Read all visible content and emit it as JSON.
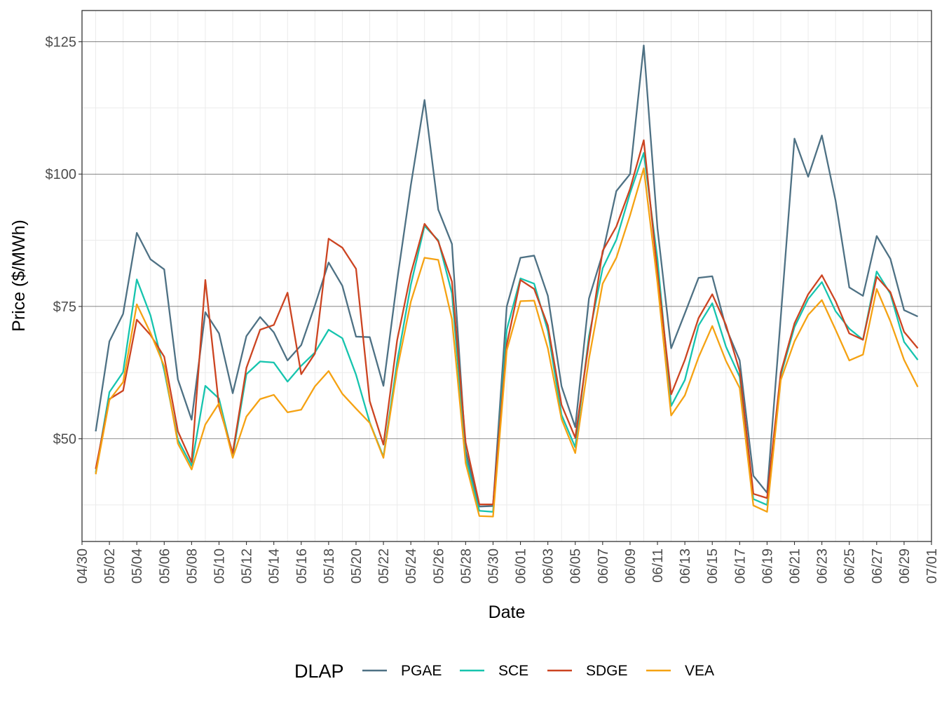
{
  "chart_data": {
    "type": "line",
    "xlabel": "Date",
    "ylabel": "Price ($/MWh)",
    "x_range": [
      "2023-04-30",
      "2023-07-01"
    ],
    "ylim": [
      30.6,
      130.9
    ],
    "y_ticks": [
      50,
      75,
      100,
      125
    ],
    "y_tick_labels": [
      "$50",
      "$75",
      "$100",
      "$125"
    ],
    "x_tick_labels": [
      "04/30",
      "05/02",
      "05/04",
      "05/06",
      "05/08",
      "05/10",
      "05/12",
      "05/14",
      "05/16",
      "05/18",
      "05/20",
      "05/22",
      "05/24",
      "05/26",
      "05/28",
      "05/30",
      "06/01",
      "06/03",
      "06/05",
      "06/07",
      "06/09",
      "06/11",
      "06/13",
      "06/15",
      "06/17",
      "06/19",
      "06/21",
      "06/23",
      "06/25",
      "06/27",
      "06/29",
      "07/01"
    ],
    "grid": true,
    "legend": {
      "title": "DLAP",
      "placement": "bottom"
    },
    "x_start": "2023-05-01",
    "x": [
      "05/01",
      "05/02",
      "05/03",
      "05/04",
      "05/05",
      "05/06",
      "05/07",
      "05/08",
      "05/09",
      "05/10",
      "05/11",
      "05/12",
      "05/13",
      "05/14",
      "05/15",
      "05/16",
      "05/17",
      "05/18",
      "05/19",
      "05/20",
      "05/21",
      "05/22",
      "05/23",
      "05/24",
      "05/25",
      "05/26",
      "05/27",
      "05/28",
      "05/29",
      "05/30",
      "05/31",
      "06/01",
      "06/02",
      "06/03",
      "06/04",
      "06/05",
      "06/06",
      "06/07",
      "06/08",
      "06/09",
      "06/10",
      "06/11",
      "06/12",
      "06/13",
      "06/14",
      "06/15",
      "06/16",
      "06/17",
      "06/18",
      "06/19",
      "06/20",
      "06/21",
      "06/22",
      "06/23",
      "06/24",
      "06/25",
      "06/26",
      "06/27",
      "06/28",
      "06/29",
      "06/30"
    ],
    "series": [
      {
        "name": "PGAE",
        "color": "#4e7184",
        "values": [
          51.4,
          68.4,
          73.6,
          88.9,
          83.9,
          82.0,
          61.2,
          53.6,
          73.9,
          69.9,
          58.6,
          69.4,
          73.0,
          70.1,
          64.8,
          67.7,
          75.2,
          83.3,
          78.9,
          69.3,
          69.2,
          60.0,
          79.9,
          97.9,
          114.0,
          93.3,
          86.8,
          47.7,
          37.2,
          37.3,
          75.0,
          84.2,
          84.6,
          77.0,
          59.9,
          52.2,
          76.5,
          85.0,
          96.8,
          100.0,
          124.3,
          89.8,
          67.1,
          73.7,
          80.4,
          80.7,
          71.0,
          64.8,
          43.0,
          39.8,
          73.0,
          106.7,
          99.5,
          107.3,
          95.0,
          78.6,
          77.0,
          88.3,
          84.0,
          74.3,
          73.1
        ]
      },
      {
        "name": "SCE",
        "color": "#16c4ae",
        "values": [
          43.6,
          58.8,
          62.6,
          80.1,
          73.3,
          62.9,
          49.8,
          44.9,
          60.0,
          57.6,
          46.8,
          62.2,
          64.6,
          64.4,
          60.8,
          63.8,
          66.3,
          70.6,
          69.0,
          62.1,
          53.1,
          46.6,
          64.5,
          79.1,
          90.2,
          87.5,
          77.5,
          46.4,
          36.4,
          36.2,
          70.6,
          80.3,
          79.3,
          70.4,
          54.5,
          48.4,
          69.4,
          82.2,
          87.6,
          96.4,
          104.0,
          84.0,
          56.2,
          61.1,
          71.4,
          75.6,
          67.4,
          61.7,
          38.6,
          37.5,
          62.0,
          71.1,
          76.4,
          79.6,
          74.1,
          70.8,
          68.7,
          81.6,
          77.4,
          68.3,
          64.9
        ]
      },
      {
        "name": "SDGE",
        "color": "#cc4421",
        "values": [
          44.3,
          57.5,
          59.1,
          72.5,
          69.6,
          65.5,
          51.4,
          45.6,
          80.0,
          56.1,
          47.3,
          63.4,
          70.6,
          71.5,
          77.6,
          62.2,
          66.1,
          87.8,
          86.1,
          82.1,
          57.1,
          48.9,
          68.6,
          81.2,
          90.6,
          87.3,
          79.7,
          49.3,
          37.6,
          37.6,
          67.8,
          80.0,
          78.3,
          71.4,
          56.4,
          50.2,
          68.3,
          85.5,
          90.1,
          97.2,
          106.4,
          81.5,
          58.4,
          64.9,
          72.8,
          77.3,
          71.5,
          62.8,
          39.6,
          38.8,
          62.5,
          71.8,
          77.3,
          80.9,
          76.0,
          69.9,
          68.7,
          80.6,
          77.7,
          70.2,
          67.1
        ]
      },
      {
        "name": "VEA",
        "color": "#f5a212",
        "values": [
          43.3,
          57.3,
          60.7,
          75.4,
          70.0,
          63.7,
          49.1,
          44.2,
          52.7,
          56.7,
          46.4,
          54.2,
          57.5,
          58.3,
          55.0,
          55.5,
          59.9,
          62.8,
          58.5,
          55.7,
          53.0,
          46.4,
          63.1,
          75.9,
          84.2,
          83.8,
          72.6,
          45.4,
          35.4,
          35.3,
          66.7,
          76.0,
          76.1,
          67.1,
          53.7,
          47.3,
          65.1,
          79.3,
          84.2,
          92.2,
          101.1,
          79.5,
          54.4,
          58.2,
          65.4,
          71.3,
          64.7,
          59.6,
          37.4,
          36.2,
          61.1,
          68.4,
          73.4,
          76.2,
          70.6,
          64.8,
          65.9,
          78.3,
          72.2,
          64.9,
          59.8
        ]
      }
    ]
  }
}
